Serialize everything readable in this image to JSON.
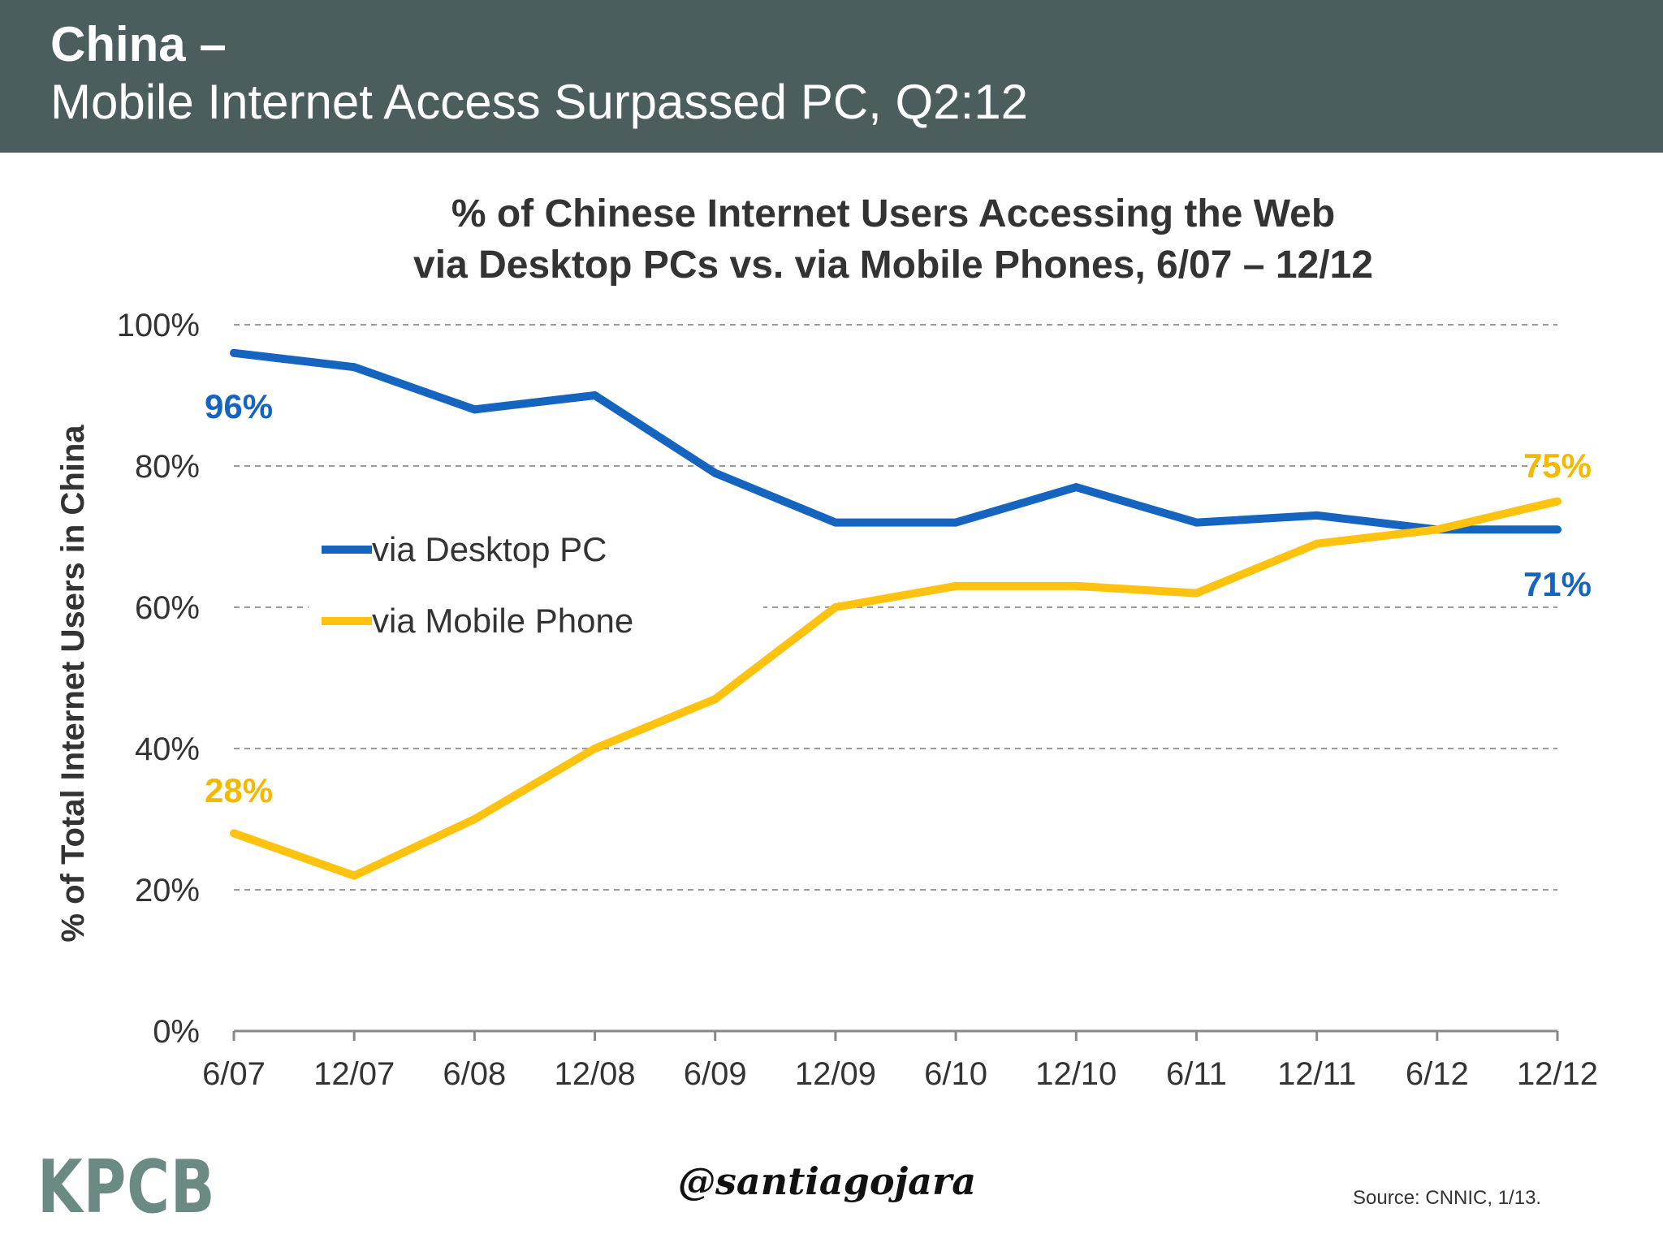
{
  "header": {
    "line1": "China –",
    "line2": "Mobile Internet Access Surpassed PC, Q2:12"
  },
  "chart_data": {
    "type": "line",
    "title_lines": [
      "% of Chinese Internet Users Accessing the Web",
      "via Desktop PCs vs. via Mobile Phones, 6/07 – 12/12"
    ],
    "ylabel": "% of Total Internet Users in China",
    "xlabel": "",
    "ylim": [
      0,
      100
    ],
    "y_ticks": [
      "0%",
      "20%",
      "40%",
      "60%",
      "80%",
      "100%"
    ],
    "categories": [
      "6/07",
      "12/07",
      "6/08",
      "12/08",
      "6/09",
      "12/09",
      "6/10",
      "12/10",
      "6/11",
      "12/11",
      "6/12",
      "12/12"
    ],
    "grid": "horizontal dashed",
    "legend_placement": "left-center",
    "series": [
      {
        "name": "via Desktop PC",
        "color": "#1565c0",
        "values": [
          96,
          94,
          88,
          90,
          79,
          72,
          72,
          77,
          72,
          73,
          71,
          71
        ],
        "start_label": "96%",
        "end_label": "71%"
      },
      {
        "name": "via Mobile Phone",
        "color": "#ffc20e",
        "values": [
          28,
          22,
          30,
          40,
          47,
          60,
          63,
          63,
          62,
          69,
          71,
          75
        ],
        "start_label": "28%",
        "end_label": "75%"
      }
    ]
  },
  "footer": {
    "logo": "KPCB",
    "watermark": "@santiagojara",
    "source": "Source: CNNIC, 1/13."
  }
}
